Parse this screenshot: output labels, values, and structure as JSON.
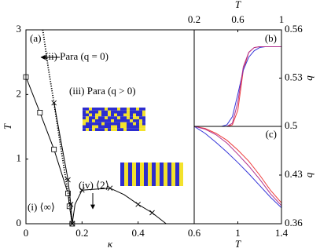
{
  "chart_data": [
    {
      "type": "line",
      "xlabel": "κ",
      "ylabel": "T",
      "xlim": [
        0,
        0.6
      ],
      "xticks": [
        0,
        0.2,
        0.4
      ],
      "ylim": [
        0,
        3
      ],
      "yticks": [
        0,
        1,
        2,
        3
      ],
      "annotations": [
        "(a)",
        "(ii) Para (q = 0)",
        "(iii) Para (q > 0)",
        "(iv) ⟨2⟩",
        "(i) ⟨∞⟩"
      ],
      "series": [
        {
          "color": "#000000",
          "style": "solid",
          "marker": "square",
          "x": [
            0,
            0.05,
            0.1,
            0.15,
            0.155,
            0.165
          ],
          "values": [
            2.27,
            1.72,
            1.15,
            0.47,
            0.27,
            0
          ]
        },
        {
          "color": "#000000",
          "style": "solid",
          "marker": "x",
          "x": [
            0.1,
            0.15,
            0.16,
            0.165
          ],
          "values": [
            1.87,
            0.68,
            0.3,
            0
          ]
        },
        {
          "color": "#000000",
          "style": "dotted",
          "marker": "none",
          "x": [
            0.06,
            0.08,
            0.1,
            0.12,
            0.14,
            0.155,
            0.165
          ],
          "values": [
            3,
            2.4,
            1.87,
            1.3,
            0.75,
            0.35,
            0
          ]
        },
        {
          "color": "#000000",
          "style": "solid",
          "marker": "none",
          "x": [
            0.165,
            0.175,
            0.2,
            0.3,
            0.35,
            0.4,
            0.45,
            0.5
          ],
          "values": [
            0,
            0.3,
            0.52,
            0.55,
            0.45,
            0.3,
            0.17,
            0
          ]
        },
        {
          "color": "#000000",
          "style": "none",
          "marker": "x",
          "x": [
            0.2,
            0.3,
            0.4,
            0.45
          ],
          "values": [
            0.52,
            0.55,
            0.3,
            0.17
          ]
        }
      ]
    },
    {
      "type": "line",
      "xlabel": "T",
      "ylabel": "q",
      "xlim": [
        0.2,
        1
      ],
      "xticks": [
        0.2,
        0.6,
        1
      ],
      "ylim": [
        0.5,
        0.56
      ],
      "yticks": [
        0.53,
        0.56
      ],
      "annotations": [
        "(b)"
      ],
      "x": [
        0.2,
        0.25,
        0.3,
        0.35,
        0.4,
        0.45,
        0.5,
        0.55,
        0.6,
        0.65,
        0.7,
        0.75,
        0.8,
        0.85,
        0.9,
        0.95,
        1
      ],
      "series": [
        {
          "color": "#ee3b3b",
          "style": "solid",
          "marker": "none",
          "values": [
            0.5,
            0.5,
            0.5,
            0.5,
            0.5,
            0.5,
            0.5,
            0.501,
            0.51,
            0.535,
            0.546,
            0.549,
            0.5495,
            0.5495,
            0.5495,
            0.5495,
            0.5495
          ]
        },
        {
          "color": "#3535d8",
          "style": "solid",
          "marker": "none",
          "values": [
            0.5,
            0.5,
            0.5,
            0.5,
            0.5,
            0.5,
            0.501,
            0.506,
            0.52,
            0.535,
            0.543,
            0.547,
            0.549,
            0.5495,
            0.5495,
            0.5495,
            0.5495
          ]
        },
        {
          "color": "#b0308e",
          "style": "solid",
          "marker": "none",
          "values": [
            0.5,
            0.5,
            0.5,
            0.5,
            0.5,
            0.5,
            0.5,
            0.502,
            0.515,
            0.537,
            0.546,
            0.549,
            0.5495,
            0.5495,
            0.5495,
            0.5495,
            0.5495
          ]
        }
      ]
    },
    {
      "type": "line",
      "xlabel": "T",
      "ylabel": "q",
      "xlim": [
        0.6,
        1.4
      ],
      "xticks": [
        0.6,
        1,
        1.4
      ],
      "ylim": [
        0.36,
        0.5
      ],
      "yticks": [
        0.36,
        0.43,
        0.5
      ],
      "annotations": [
        "(c)"
      ],
      "x": [
        0.6,
        0.7,
        0.8,
        0.9,
        1,
        1.1,
        1.2,
        1.3,
        1.4
      ],
      "series": [
        {
          "color": "#ee3b3b",
          "style": "solid",
          "marker": "none",
          "values": [
            0.5,
            0.497,
            0.49,
            0.48,
            0.466,
            0.45,
            0.43,
            0.408,
            0.39
          ]
        },
        {
          "color": "#3535d8",
          "style": "solid",
          "marker": "none",
          "values": [
            0.5,
            0.49,
            0.477,
            0.463,
            0.448,
            0.432,
            0.415,
            0.398,
            0.383
          ]
        },
        {
          "color": "#b0308e",
          "style": "solid",
          "marker": "none",
          "values": [
            0.5,
            0.496,
            0.488,
            0.476,
            0.46,
            0.443,
            0.424,
            0.403,
            0.386
          ]
        }
      ]
    }
  ]
}
